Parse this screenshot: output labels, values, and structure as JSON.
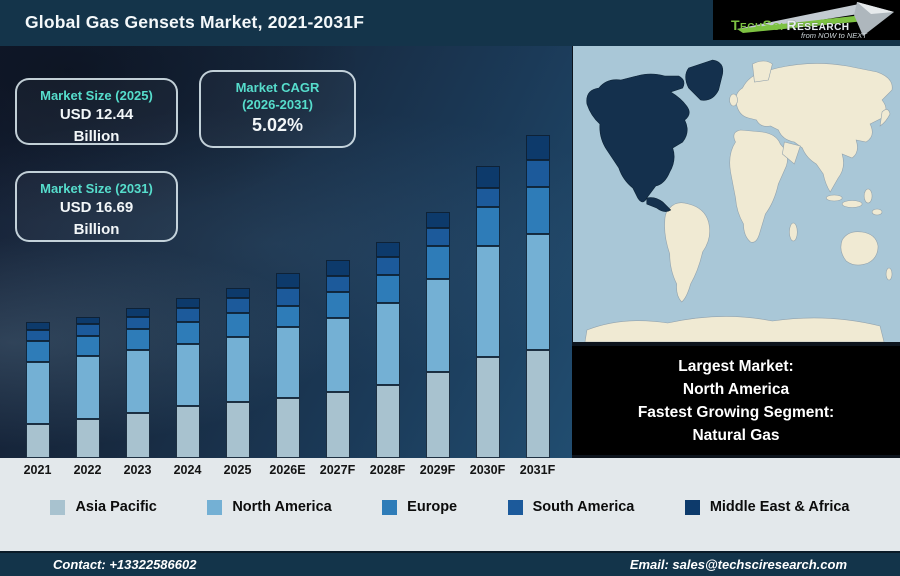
{
  "header": {
    "title": "Global Gas Gensets Market, 2021-2031F"
  },
  "logo": {
    "brand_part1": "TechSci",
    "brand_part2": "Research",
    "tagline": "from NOW to NEXT"
  },
  "stat_boxes": {
    "size_2025": {
      "label": "Market Size (2025)",
      "value": "USD 12.44",
      "unit": "Billion"
    },
    "cagr": {
      "label_line1": "Market CAGR",
      "label_line2": "(2026-2031)",
      "value": "5.02%"
    },
    "size_2031": {
      "label": "Market Size (2031)",
      "value": "USD 16.69",
      "unit": "Billion"
    }
  },
  "callout": {
    "line1": "Largest Market:",
    "line2": "North America",
    "line3": "Fastest Growing Segment:",
    "line4": "Natural Gas"
  },
  "map": {
    "highlighted_region": "North America",
    "ocean_color": "#a9c7d7",
    "land_color": "#f0ead3",
    "highlight_color": "#14304d"
  },
  "footer": {
    "contact": "Contact: +13322586602",
    "email": "Email: sales@techsciresearch.com"
  },
  "chart_data": {
    "type": "bar",
    "stacked": true,
    "title": "Global Gas Gensets Market, 2021-2031F",
    "categories": [
      "2021",
      "2022",
      "2023",
      "2024",
      "2025",
      "2026E",
      "2027F",
      "2028F",
      "2029F",
      "2030F",
      "2031F"
    ],
    "value_unit": "relative stacked-segment heights (rendered px); source chart shows no y-axis",
    "series": [
      {
        "name": "Asia Pacific",
        "color": "#a8c2cf",
        "values": [
          34,
          39,
          45,
          52,
          56,
          60,
          66,
          73,
          86,
          101,
          108
        ]
      },
      {
        "name": "North America",
        "color": "#74b0d4",
        "values": [
          62,
          63,
          63,
          62,
          65,
          71,
          74,
          82,
          93,
          111,
          116
        ]
      },
      {
        "name": "Europe",
        "color": "#2e7cb8",
        "values": [
          21,
          20,
          21,
          22,
          24,
          21,
          26,
          28,
          33,
          39,
          47
        ]
      },
      {
        "name": "South America",
        "color": "#1c5a9b",
        "values": [
          11,
          12,
          12,
          14,
          15,
          18,
          16,
          18,
          18,
          19,
          27
        ]
      },
      {
        "name": "Middle East & Africa",
        "color": "#0d3a6b",
        "values": [
          8,
          7,
          9,
          10,
          10,
          15,
          16,
          15,
          16,
          22,
          25
        ]
      }
    ],
    "totals": [
      136,
      141,
      150,
      160,
      170,
      185,
      198,
      216,
      246,
      292,
      323
    ],
    "annotations": {
      "market_size_2025": "USD 12.44 Billion",
      "market_size_2031": "USD 16.69 Billion",
      "cagr_2026_2031": "5.02%"
    },
    "legend_position": "bottom",
    "y_axis_visible": false,
    "grid": false
  }
}
